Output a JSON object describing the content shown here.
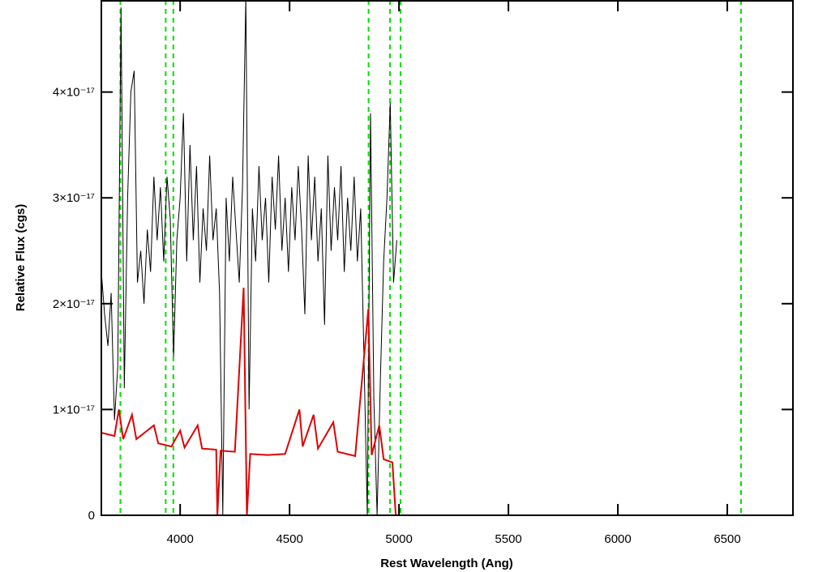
{
  "chart_data": {
    "type": "line",
    "xlabel": "Rest Wavelength (Ang)",
    "ylabel": "Relative Flux (cgs)",
    "xlim": [
      3640,
      6800
    ],
    "ylim": [
      0,
      4.87e-17
    ],
    "xticks": [
      4000,
      4500,
      5000,
      5500,
      6000,
      6500
    ],
    "yticks": [
      0,
      {
        "value": 1e-17,
        "label": "1×10⁻¹⁷"
      },
      {
        "value": 2e-17,
        "label": "2×10⁻¹⁷"
      },
      {
        "value": 3e-17,
        "label": "3×10⁻¹⁷"
      },
      {
        "value": 4e-17,
        "label": "4×10⁻¹⁷"
      }
    ],
    "vlines": [
      3727,
      3934,
      3969,
      4861,
      4959,
      5007,
      6563
    ],
    "vline_color": "#00e000",
    "series": [
      {
        "color": "#000000",
        "x": [
          3640,
          3655,
          3670,
          3685,
          3700,
          3715,
          3730,
          3745,
          3760,
          3775,
          3790,
          3805,
          3820,
          3835,
          3850,
          3865,
          3880,
          3895,
          3910,
          3925,
          3940,
          3955,
          3970,
          3985,
          4000,
          4015,
          4030,
          4045,
          4060,
          4075,
          4090,
          4105,
          4120,
          4135,
          4150,
          4165,
          4180,
          4195,
          4210,
          4225,
          4240,
          4255,
          4270,
          4285,
          4300,
          4315,
          4330,
          4345,
          4360,
          4375,
          4390,
          4405,
          4420,
          4435,
          4450,
          4465,
          4480,
          4495,
          4510,
          4525,
          4540,
          4555,
          4570,
          4585,
          4600,
          4615,
          4630,
          4645,
          4660,
          4675,
          4690,
          4705,
          4720,
          4735,
          4750,
          4765,
          4780,
          4795,
          4810,
          4825,
          4840,
          4855,
          4870,
          4885,
          4900,
          4915,
          4930,
          4945,
          4960,
          4975,
          4990
        ],
        "values": [
          2.3e-17,
          1.9e-17,
          1.6e-17,
          2.1e-17,
          9e-18,
          1.4e-17,
          4.8e-17,
          1.2e-17,
          3e-17,
          4e-17,
          4.2e-17,
          2.2e-17,
          2.5e-17,
          2e-17,
          2.7e-17,
          2.3e-17,
          3.2e-17,
          2.6e-17,
          3.1e-17,
          2.4e-17,
          3.2e-17,
          2.8e-17,
          1.5e-17,
          2.6e-17,
          3e-17,
          3.8e-17,
          2.4e-17,
          3.5e-17,
          2.6e-17,
          3.3e-17,
          2.2e-17,
          2.9e-17,
          2.5e-17,
          3.4e-17,
          2.6e-17,
          2.9e-17,
          2.1e-17,
          0,
          3e-17,
          2.4e-17,
          3.2e-17,
          2.7e-17,
          2.2e-17,
          3.1e-17,
          4.9e-17,
          1e-17,
          2.9e-17,
          2.4e-17,
          3.3e-17,
          2.6e-17,
          3e-17,
          2.2e-17,
          3.2e-17,
          2.7e-17,
          3.4e-17,
          2.5e-17,
          3e-17,
          2.3e-17,
          3.1e-17,
          2.6e-17,
          3.3e-17,
          2.7e-17,
          1.9e-17,
          3.4e-17,
          2.6e-17,
          3.2e-17,
          2.4e-17,
          2.9e-17,
          1.8e-17,
          3.4e-17,
          2.5e-17,
          3.1e-17,
          2.6e-17,
          3.3e-17,
          2.3e-17,
          3e-17,
          2.5e-17,
          3.2e-17,
          2.4e-17,
          2.9e-17,
          1.5e-17,
          0,
          3.8e-17,
          1.1e-17,
          0,
          1.3e-17,
          2.4e-17,
          3e-17,
          3.9e-17,
          2.2e-17,
          2.6e-17
        ]
      },
      {
        "color": "#e00000",
        "x": [
          3640,
          3700,
          3720,
          3740,
          3780,
          3800,
          3880,
          3900,
          3960,
          4000,
          4020,
          4080,
          4100,
          4165,
          4170,
          4185,
          4250,
          4290,
          4305,
          4320,
          4400,
          4480,
          4545,
          4560,
          4610,
          4630,
          4700,
          4720,
          4800,
          4860,
          4875,
          4910,
          4930,
          4970,
          4985,
          6800
        ],
        "values": [
          7.8e-18,
          7.5e-18,
          1e-17,
          7.2e-18,
          9.5e-18,
          7.2e-18,
          8.5e-18,
          6.8e-18,
          6.5e-18,
          8e-18,
          6.4e-18,
          8.5e-18,
          6.3e-18,
          6.2e-18,
          0,
          6.1e-18,
          6e-18,
          2.15e-17,
          0,
          5.8e-18,
          5.7e-18,
          5.8e-18,
          1e-17,
          6.5e-18,
          9.5e-18,
          6.3e-18,
          8.8e-18,
          6e-18,
          5.6e-18,
          1.95e-17,
          5.7e-18,
          8.5e-18,
          5.3e-18,
          5e-18,
          0,
          0
        ]
      }
    ]
  }
}
